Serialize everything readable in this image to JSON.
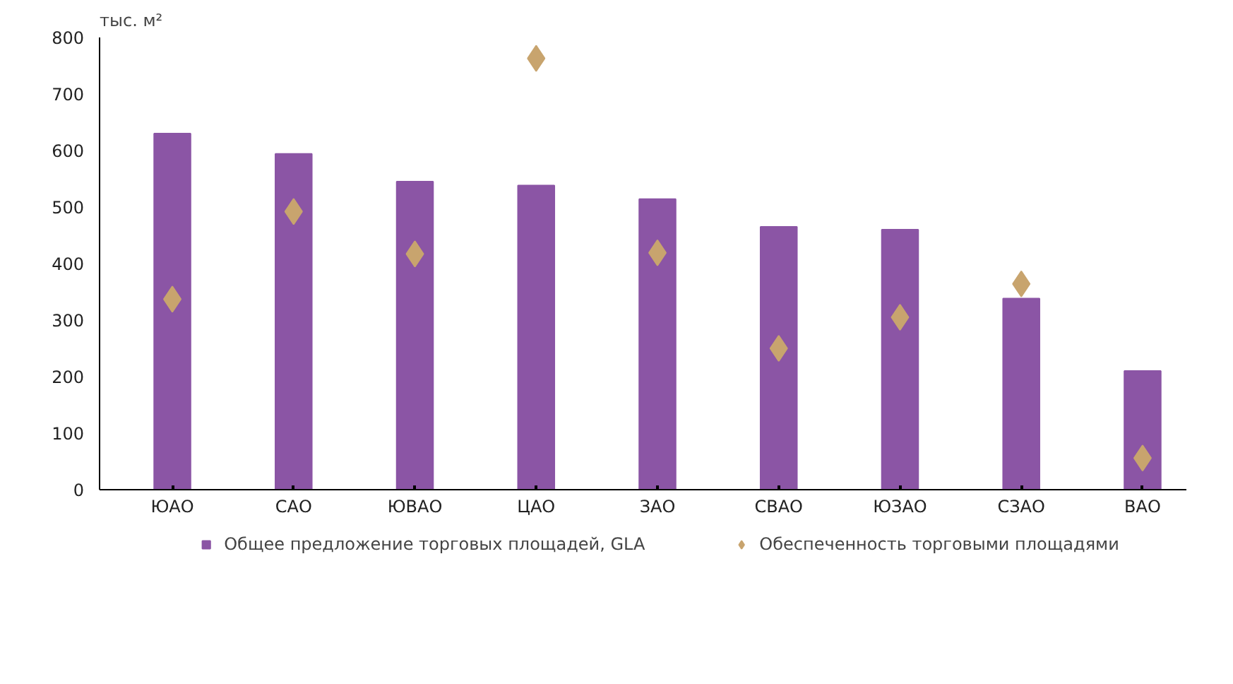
{
  "chart_data": {
    "type": "bar",
    "ylabel": "тыс. м²",
    "categories": [
      "ЮАО",
      "САО",
      "ЮВАО",
      "ЦАО",
      "ЗАО",
      "СВАО",
      "ЮЗАО",
      "СЗАО",
      "ВАО"
    ],
    "series": [
      {
        "name": "Общее предложение торговых площадей, GLA",
        "color": "#8b55a5",
        "values": [
          630,
          594,
          545,
          538,
          514,
          465,
          460,
          338,
          210
        ]
      },
      {
        "name": "Обеспеченность торговыми площадями",
        "type": "scatter",
        "marker": "diamond",
        "color": "#c8a46e",
        "values": [
          337,
          492,
          417,
          763,
          419,
          250,
          305,
          364,
          56
        ]
      }
    ],
    "ylim": [
      0,
      800
    ],
    "yticks": [
      0,
      100,
      200,
      300,
      400,
      500,
      600,
      700,
      800
    ],
    "grid": false,
    "legend": "bottom"
  }
}
